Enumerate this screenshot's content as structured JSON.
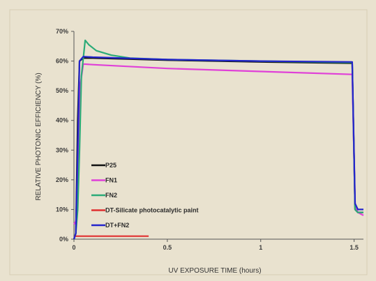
{
  "chart_data": {
    "type": "line",
    "xlabel": "UV EXPOSURE TIME (hours)",
    "ylabel": "RELATIVE PHOTONIC EFFICIENCY (%)",
    "xlim": [
      0,
      1.55
    ],
    "ylim": [
      0,
      0.7
    ],
    "x_ticks": [
      "0",
      "0.5",
      "1",
      "1.5"
    ],
    "x_tick_values": [
      0,
      0.5,
      1,
      1.5
    ],
    "y_ticks": [
      "0%",
      "10%",
      "20%",
      "30%",
      "40%",
      "50%",
      "60%",
      "70%"
    ],
    "y_tick_values": [
      0,
      0.1,
      0.2,
      0.3,
      0.4,
      0.5,
      0.6,
      0.7
    ],
    "legend_position": "lower-left",
    "grid": false,
    "series": [
      {
        "name": "P25",
        "color": "#111111",
        "x": [
          0,
          0.01,
          0.02,
          0.03,
          0.05,
          0.1,
          0.5,
          1.0,
          1.49,
          1.505,
          1.52,
          1.55
        ],
        "y": [
          0,
          0.02,
          0.4,
          0.6,
          0.61,
          0.61,
          0.603,
          0.597,
          0.593,
          0.1,
          0.09,
          0.09
        ]
      },
      {
        "name": "FN1",
        "color": "#e040d8",
        "x": [
          0,
          0.01,
          0.02,
          0.03,
          0.05,
          0.1,
          0.5,
          1.0,
          1.49,
          1.505,
          1.52,
          1.55
        ],
        "y": [
          0.05,
          0.06,
          0.1,
          0.5,
          0.59,
          0.588,
          0.575,
          0.565,
          0.555,
          0.12,
          0.09,
          0.08
        ]
      },
      {
        "name": "FN2",
        "color": "#2bab78",
        "x": [
          0,
          0.01,
          0.02,
          0.03,
          0.04,
          0.06,
          0.08,
          0.12,
          0.2,
          0.3,
          0.5,
          1.0,
          1.49,
          1.505,
          1.52,
          1.55
        ],
        "y": [
          0,
          0.02,
          0.1,
          0.3,
          0.55,
          0.67,
          0.655,
          0.635,
          0.62,
          0.61,
          0.605,
          0.6,
          0.595,
          0.1,
          0.09,
          0.09
        ]
      },
      {
        "name": "DT-Silicate photocatalytic paint",
        "color": "#e03030",
        "x": [
          0,
          0.2,
          0.4
        ],
        "y": [
          0.01,
          0.01,
          0.01
        ]
      },
      {
        "name": "DT+FN2",
        "color": "#2424cc",
        "x": [
          0,
          0.01,
          0.02,
          0.03,
          0.05,
          0.1,
          0.5,
          1.0,
          1.49,
          1.505,
          1.52,
          1.55
        ],
        "y": [
          0,
          0.02,
          0.3,
          0.6,
          0.615,
          0.613,
          0.605,
          0.6,
          0.597,
          0.12,
          0.1,
          0.1
        ]
      }
    ]
  }
}
